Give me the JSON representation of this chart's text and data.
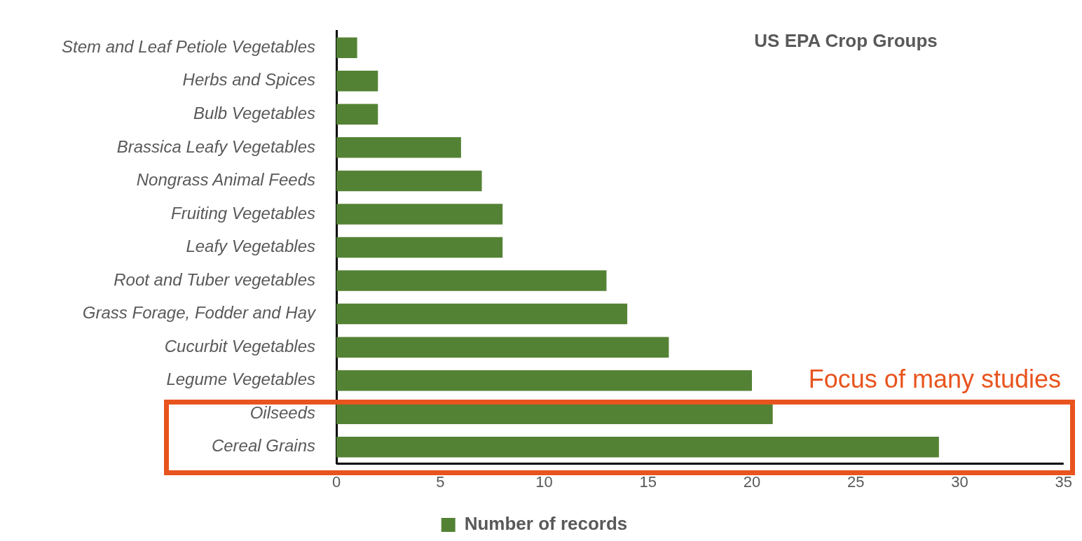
{
  "chart_data": {
    "type": "bar",
    "orientation": "horizontal",
    "title": "US EPA Crop Groups",
    "categories": [
      "Stem and Leaf Petiole Vegetables",
      "Herbs and Spices",
      "Bulb Vegetables",
      "Brassica Leafy Vegetables",
      "Nongrass Animal Feeds",
      "Fruiting Vegetables",
      "Leafy Vegetables",
      "Root and Tuber vegetables",
      "Grass Forage, Fodder and Hay",
      "Cucurbit Vegetables",
      "Legume Vegetables",
      "Oilseeds",
      "Cereal Grains"
    ],
    "series": [
      {
        "name": "Number of records",
        "color": "#548235",
        "values": [
          1,
          2,
          2,
          6,
          7,
          8,
          8,
          13,
          14,
          16,
          20,
          21,
          29
        ]
      }
    ],
    "xlim": [
      0,
      35
    ],
    "xticks": [
      0,
      5,
      10,
      15,
      20,
      25,
      30,
      35
    ],
    "grid": false,
    "legend": "bottom",
    "annotations": [
      "Focus of many studies"
    ]
  }
}
